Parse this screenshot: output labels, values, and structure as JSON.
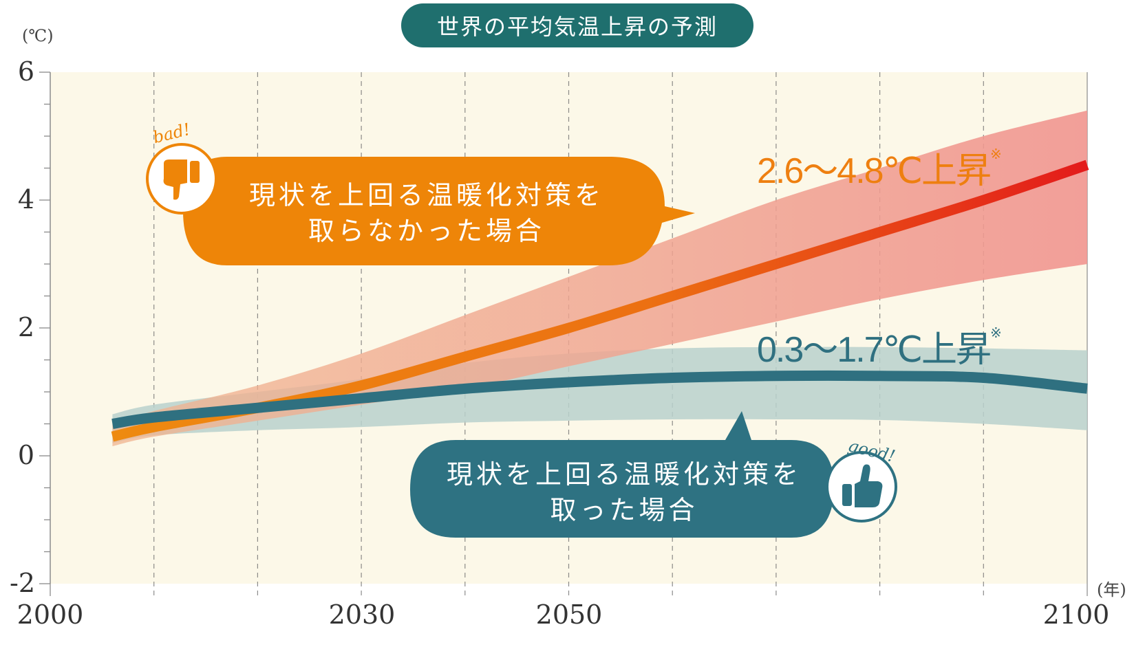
{
  "title": "世界の平均気温上昇の予測",
  "colors": {
    "title_bg": "#1f6f6e",
    "plot_bg": "#fcf8e8",
    "high_line": "#ee7f10",
    "high_line_end": "#e31b1b",
    "high_band": "#f3a39a",
    "low_line": "#2f7080",
    "low_band": "#b8d1cc",
    "bad_bubble": "#ee8508",
    "good_bubble": "#2e7282"
  },
  "chart_data": {
    "type": "area",
    "ylabel": "(℃)",
    "xlabel": "(年)",
    "xlim": [
      2000,
      2100
    ],
    "ylim": [
      -2,
      6
    ],
    "x_ticks": [
      "2000",
      "2030",
      "2050",
      "2100"
    ],
    "y_ticks": [
      "6",
      "4",
      "2",
      "0",
      "-2"
    ],
    "grid": true,
    "series": [
      {
        "name": "現状を上回る温暖化対策を取らなかった場合",
        "label": "2.6〜4.8℃上昇",
        "note_mark": "※",
        "x": [
          2006,
          2010,
          2020,
          2030,
          2040,
          2050,
          2060,
          2070,
          2080,
          2090,
          2100
        ],
        "values": [
          0.3,
          0.45,
          0.75,
          1.1,
          1.55,
          2.0,
          2.5,
          3.0,
          3.5,
          4.0,
          4.55
        ],
        "band_upper": [
          0.5,
          0.7,
          1.1,
          1.6,
          2.2,
          2.8,
          3.4,
          4.0,
          4.5,
          5.0,
          5.4
        ],
        "band_lower": [
          0.15,
          0.3,
          0.55,
          0.8,
          1.05,
          1.4,
          1.75,
          2.1,
          2.45,
          2.75,
          3.0
        ]
      },
      {
        "name": "現状を上回る温暖化対策を取った場合",
        "label": "0.3〜1.7℃上昇",
        "note_mark": "※",
        "x": [
          2006,
          2010,
          2020,
          2030,
          2040,
          2050,
          2060,
          2070,
          2080,
          2090,
          2100
        ],
        "values": [
          0.5,
          0.6,
          0.75,
          0.9,
          1.05,
          1.15,
          1.22,
          1.25,
          1.25,
          1.22,
          1.05
        ],
        "band_upper": [
          0.65,
          0.8,
          1.0,
          1.2,
          1.45,
          1.6,
          1.68,
          1.7,
          1.7,
          1.68,
          1.65
        ],
        "band_lower": [
          0.2,
          0.32,
          0.4,
          0.45,
          0.52,
          0.55,
          0.57,
          0.57,
          0.56,
          0.5,
          0.4
        ]
      }
    ]
  },
  "bubbles": {
    "bad": {
      "line1": "現状を上回る温暖化対策を",
      "line2": "取らなかった場合",
      "badge_word": "bad!",
      "badge_icon": "thumbs-down-icon"
    },
    "good": {
      "line1": "現状を上回る温暖化対策を",
      "line2": "取った場合",
      "badge_word": "good!",
      "badge_icon": "thumbs-up-icon"
    }
  }
}
